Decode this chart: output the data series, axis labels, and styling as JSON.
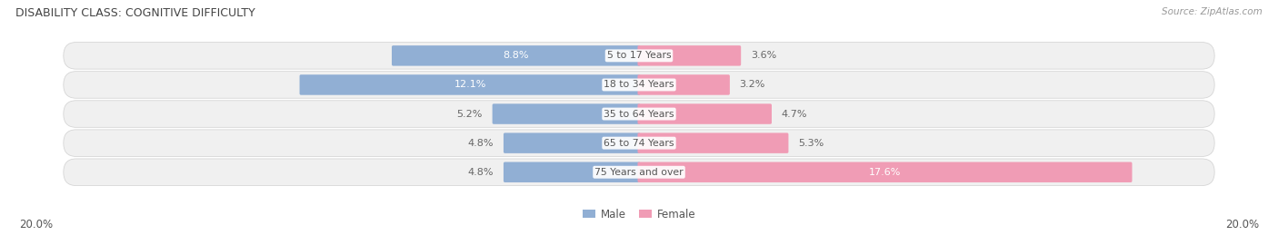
{
  "title": "DISABILITY CLASS: COGNITIVE DIFFICULTY",
  "source": "Source: ZipAtlas.com",
  "categories": [
    "5 to 17 Years",
    "18 to 34 Years",
    "35 to 64 Years",
    "65 to 74 Years",
    "75 Years and over"
  ],
  "male_values": [
    8.8,
    12.1,
    5.2,
    4.8,
    4.8
  ],
  "female_values": [
    3.6,
    3.2,
    4.7,
    5.3,
    17.6
  ],
  "max_val": 20.0,
  "male_color": "#91afd4",
  "female_color": "#f09cb5",
  "male_label_color_default": "#666666",
  "female_label_color_default": "#666666",
  "row_bg_color": "#e8e8e8",
  "row_bg_light": "#f2f2f2",
  "axis_label_color": "#555555",
  "title_color": "#444444",
  "legend_male_color": "#91afd4",
  "legend_female_color": "#f09cb5",
  "center_label_color": "#555555",
  "background_color": "#ffffff",
  "male_inside_threshold": 7.0,
  "female_inside_threshold": 10.0
}
